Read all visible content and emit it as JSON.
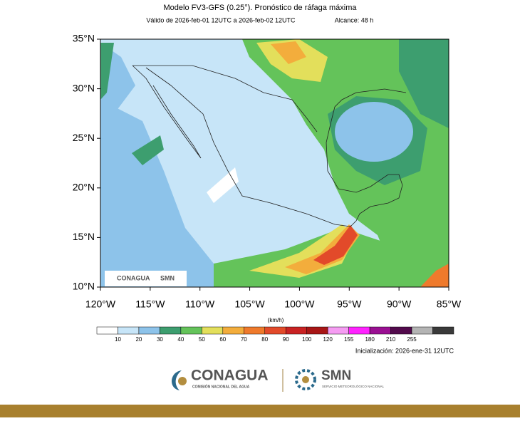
{
  "header": {
    "title": "Modelo FV3-GFS (0.25°). Pronóstico de ráfaga máxima",
    "valid": "Válido de 2026-feb-01 12UTC a 2026-feb-02 12UTC",
    "range": "Alcance: 48 h"
  },
  "map": {
    "lat_labels": [
      "35°N",
      "30°N",
      "25°N",
      "20°N",
      "15°N",
      "10°N"
    ],
    "lon_labels": [
      "120°W",
      "115°W",
      "110°W",
      "105°W",
      "100°W",
      "95°W",
      "90°W",
      "85°W"
    ],
    "watermark": [
      "CONAGUA",
      "SMN"
    ]
  },
  "colorbar": {
    "unit": "(km/h)",
    "levels": [
      10,
      20,
      30,
      40,
      50,
      60,
      70,
      80,
      90,
      100,
      120,
      155,
      180,
      210,
      255
    ],
    "colors": [
      "#ffffff",
      "#c7e5f8",
      "#8dc3ea",
      "#3d9e6f",
      "#64c35a",
      "#e3df5b",
      "#f3ad3c",
      "#ef7a2c",
      "#e24a2a",
      "#c92223",
      "#a81616",
      "#f59cf2",
      "#ff22ff",
      "#9a0f92",
      "#520a4c",
      "#b4b4b4",
      "#3a3a3a"
    ]
  },
  "init": "Inicialización: 2026-ene-31 12UTC",
  "footer": {
    "org1": "CONAGUA",
    "org1_sub": "COMISIÓN NACIONAL DEL AGUA",
    "org2": "SMN",
    "org2_sub": "SERVICIO METEOROLÓGICO NACIONAL"
  }
}
